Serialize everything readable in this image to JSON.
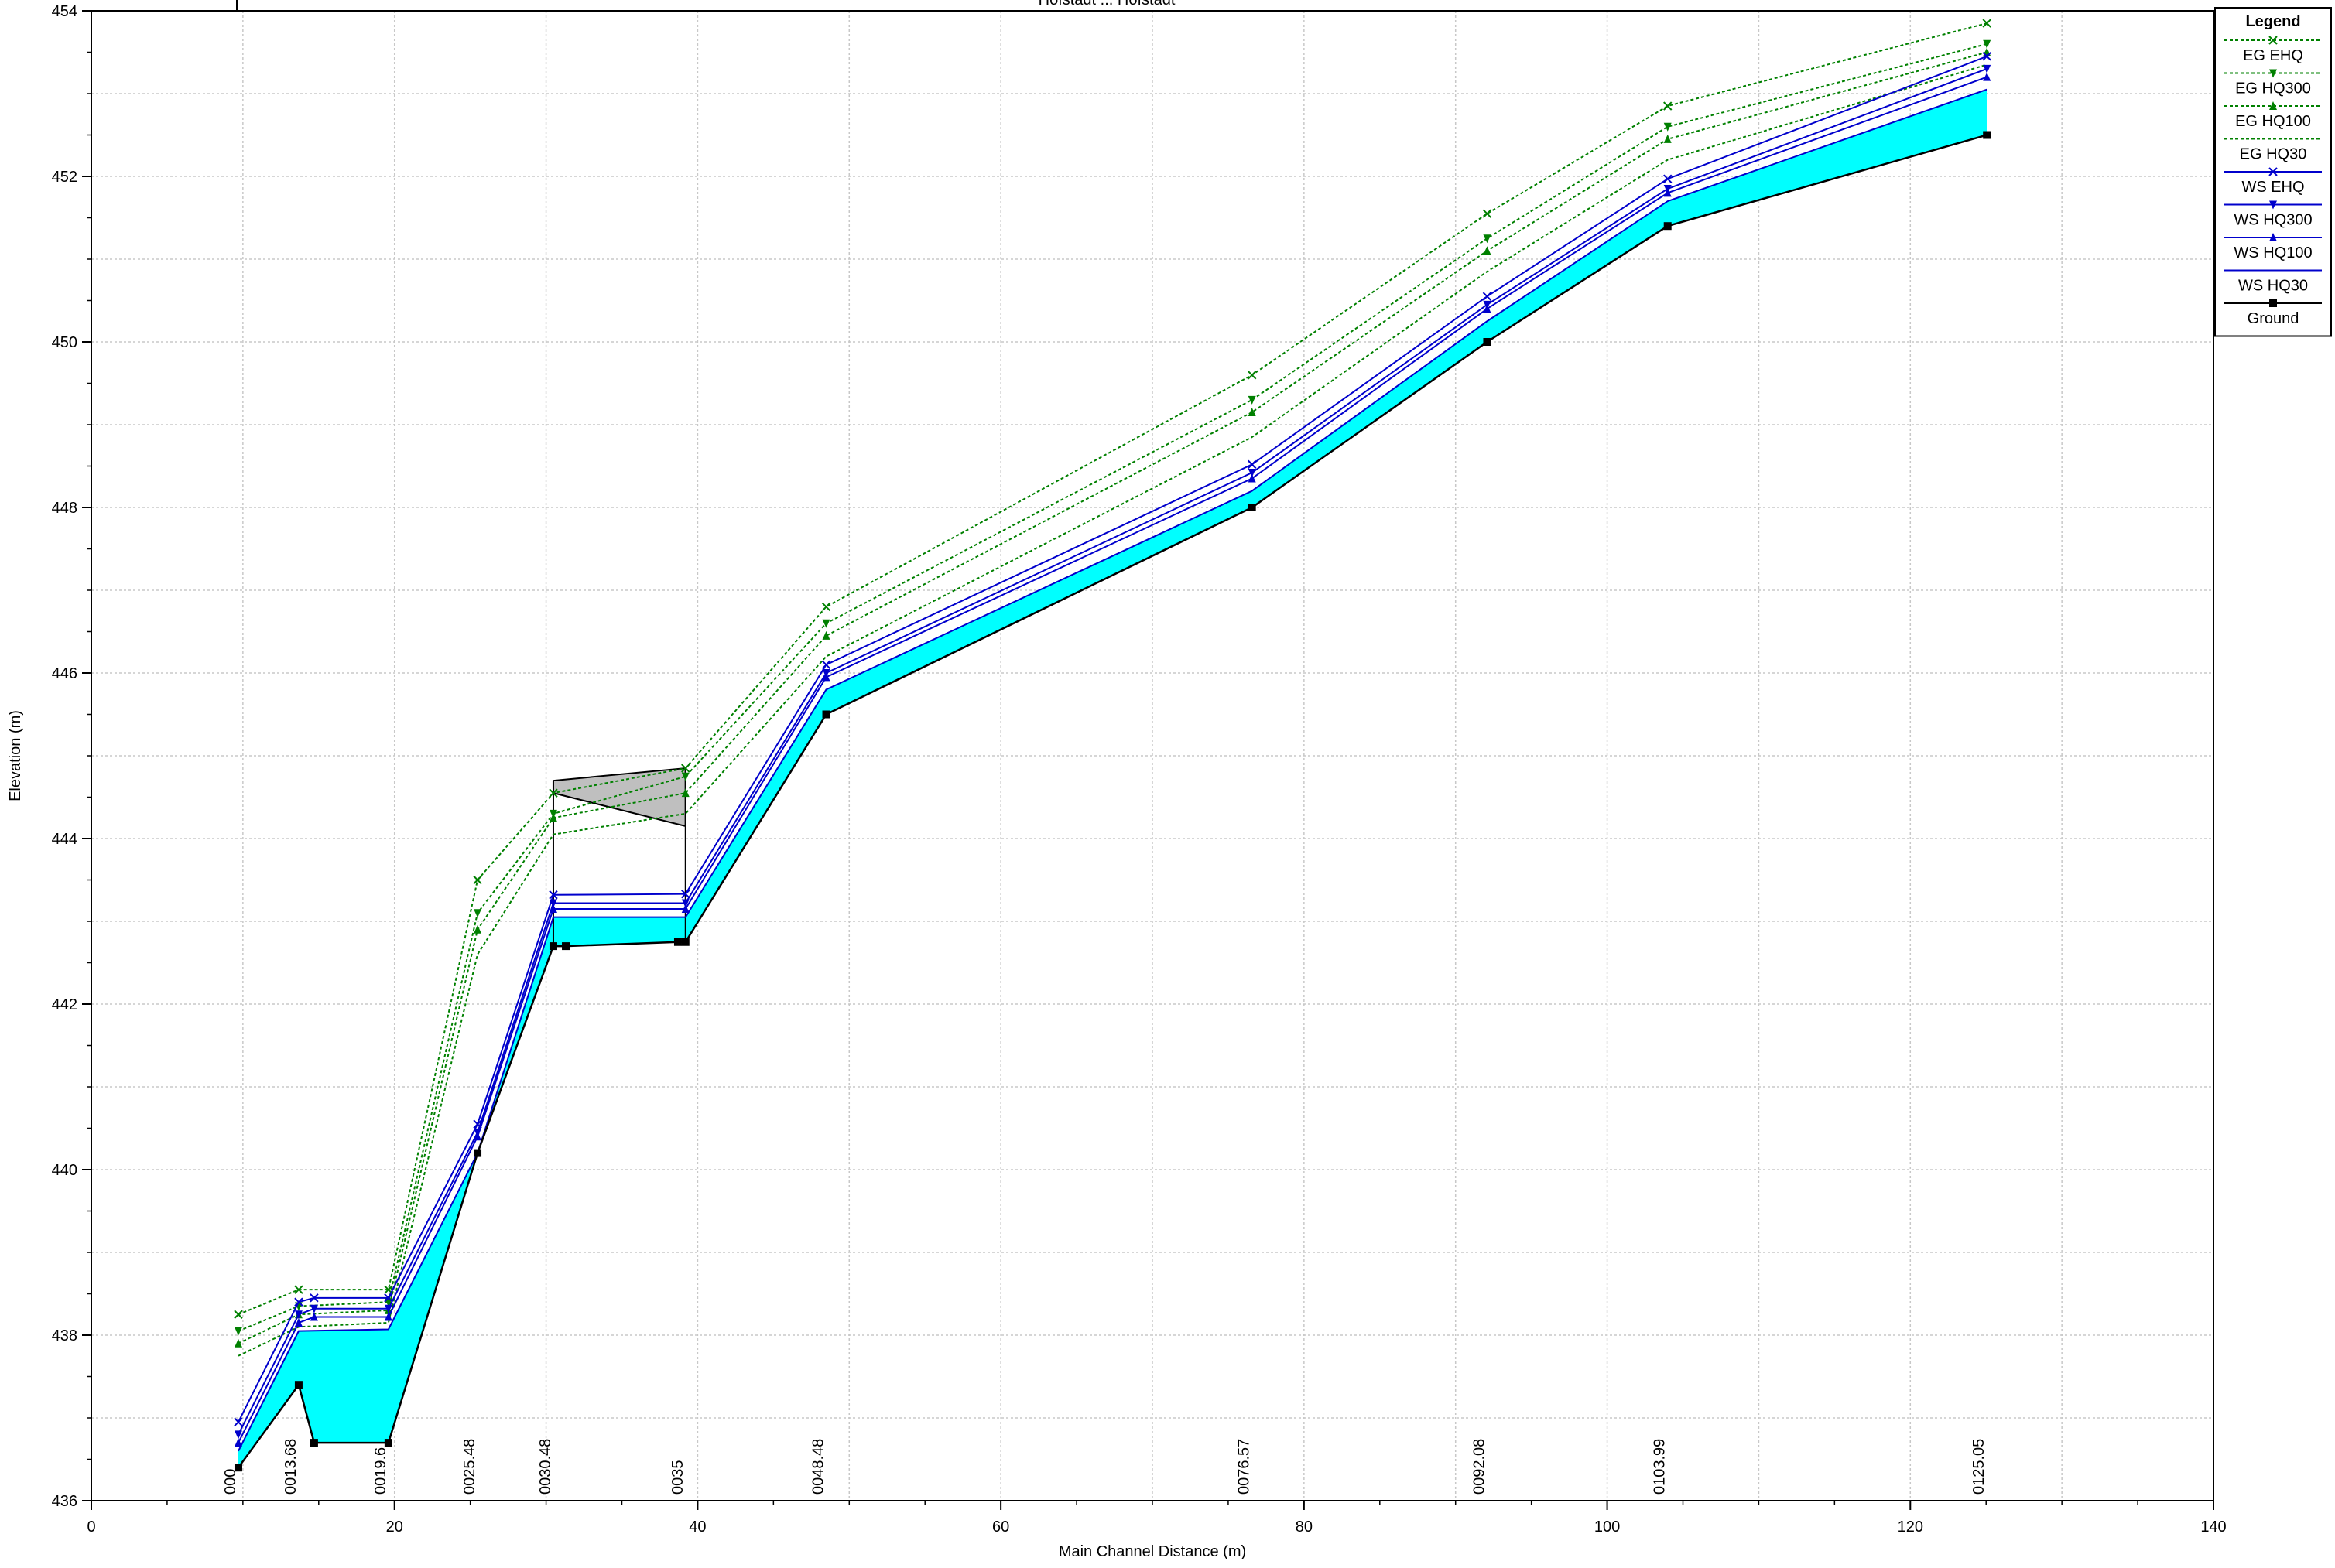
{
  "chart_data": {
    "type": "line",
    "title": "",
    "title_partial": "Hofstadt ... Hofstadt",
    "xlabel": "Main Channel Distance (m)",
    "ylabel": "Elevation (m)",
    "xlim": [
      0,
      140
    ],
    "ylim": [
      436,
      454
    ],
    "x_ticks": [
      "0",
      "20",
      "40",
      "60",
      "80",
      "100",
      "120",
      "140"
    ],
    "y_ticks": [
      "436",
      "438",
      "440",
      "442",
      "444",
      "446",
      "448",
      "450",
      "452",
      "454"
    ],
    "grid": true,
    "legend_position": "right",
    "legend_title": "Legend",
    "legend": [
      {
        "label": "EG  EHQ",
        "key": "eg_ehq"
      },
      {
        "label": "EG  HQ300",
        "key": "eg_hq300"
      },
      {
        "label": "EG  HQ100",
        "key": "eg_hq100"
      },
      {
        "label": "EG  HQ30",
        "key": "eg_hq30"
      },
      {
        "label": "WS  EHQ",
        "key": "ws_ehq"
      },
      {
        "label": "WS  HQ300",
        "key": "ws_hq300"
      },
      {
        "label": "WS  HQ100",
        "key": "ws_hq100"
      },
      {
        "label": "WS  HQ30",
        "key": "ws_hq30"
      },
      {
        "label": "Ground",
        "key": "ground"
      }
    ],
    "stations": [
      {
        "label": "000",
        "x": 9.7
      },
      {
        "label": "0013.68",
        "x": 13.68
      },
      {
        "label": "0019.6",
        "x": 19.6
      },
      {
        "label": "0025.48",
        "x": 25.48
      },
      {
        "label": "0030.48",
        "x": 30.48
      },
      {
        "label": "0035",
        "x": 39.2
      },
      {
        "label": "0048.48",
        "x": 48.48
      },
      {
        "label": "0076.57",
        "x": 76.57
      },
      {
        "label": "0092.08",
        "x": 92.08
      },
      {
        "label": "0103.99",
        "x": 103.99
      },
      {
        "label": "0125.05",
        "x": 125.05
      }
    ],
    "series": [
      {
        "key": "ground",
        "name": "Ground",
        "color": "#000000",
        "marker": "square",
        "points": [
          [
            9.7,
            436.4
          ],
          [
            13.68,
            437.4
          ],
          [
            14.7,
            436.7
          ],
          [
            19.6,
            436.7
          ],
          [
            25.48,
            440.2
          ],
          [
            30.48,
            442.7
          ],
          [
            31.3,
            442.7
          ],
          [
            38.7,
            442.75
          ],
          [
            39.2,
            442.75
          ],
          [
            48.48,
            445.5
          ],
          [
            76.57,
            448.0
          ],
          [
            92.08,
            450.0
          ],
          [
            103.99,
            451.4
          ],
          [
            125.05,
            452.5
          ]
        ]
      },
      {
        "key": "ws_hq30",
        "name": "WS  HQ30",
        "color": "#0000cc",
        "marker": "none",
        "points": [
          [
            9.7,
            436.6
          ],
          [
            13.68,
            438.05
          ],
          [
            19.6,
            438.07
          ],
          [
            25.48,
            440.2
          ],
          [
            30.48,
            443.05
          ],
          [
            39.2,
            443.05
          ],
          [
            48.48,
            445.8
          ],
          [
            76.57,
            448.2
          ],
          [
            92.08,
            450.25
          ],
          [
            103.99,
            451.7
          ],
          [
            125.05,
            453.05
          ]
        ]
      },
      {
        "key": "ws_hq100",
        "name": "WS  HQ100",
        "color": "#0000cc",
        "marker": "triangle-up",
        "points": [
          [
            9.7,
            436.7
          ],
          [
            13.68,
            438.15
          ],
          [
            14.7,
            438.22
          ],
          [
            19.6,
            438.22
          ],
          [
            25.48,
            440.4
          ],
          [
            30.48,
            443.15
          ],
          [
            39.2,
            443.15
          ],
          [
            48.48,
            445.95
          ],
          [
            76.57,
            448.35
          ],
          [
            92.08,
            450.4
          ],
          [
            103.99,
            451.8
          ],
          [
            125.05,
            453.2
          ]
        ]
      },
      {
        "key": "ws_hq300",
        "name": "WS  HQ300",
        "color": "#0000cc",
        "marker": "triangle-down",
        "points": [
          [
            9.7,
            436.8
          ],
          [
            13.68,
            438.25
          ],
          [
            14.7,
            438.32
          ],
          [
            19.6,
            438.32
          ],
          [
            25.48,
            440.45
          ],
          [
            30.48,
            443.22
          ],
          [
            39.2,
            443.22
          ],
          [
            48.48,
            446.0
          ],
          [
            76.57,
            448.42
          ],
          [
            92.08,
            450.45
          ],
          [
            103.99,
            451.85
          ],
          [
            125.05,
            453.3
          ]
        ]
      },
      {
        "key": "ws_ehq",
        "name": "WS  EHQ",
        "color": "#0000cc",
        "marker": "x",
        "points": [
          [
            9.7,
            436.95
          ],
          [
            13.68,
            438.4
          ],
          [
            14.7,
            438.45
          ],
          [
            19.6,
            438.45
          ],
          [
            25.48,
            440.55
          ],
          [
            30.48,
            443.32
          ],
          [
            39.2,
            443.33
          ],
          [
            48.48,
            446.1
          ],
          [
            76.57,
            448.52
          ],
          [
            92.08,
            450.55
          ],
          [
            103.99,
            451.97
          ],
          [
            125.05,
            453.45
          ]
        ]
      },
      {
        "key": "eg_hq30",
        "name": "EG  HQ30",
        "color": "#008000",
        "marker": "none",
        "points": [
          [
            9.7,
            437.75
          ],
          [
            13.68,
            438.1
          ],
          [
            19.6,
            438.15
          ],
          [
            25.48,
            442.6
          ],
          [
            30.48,
            444.05
          ],
          [
            39.2,
            444.3
          ],
          [
            48.48,
            446.2
          ],
          [
            76.57,
            448.85
          ],
          [
            92.08,
            450.85
          ],
          [
            103.99,
            452.2
          ],
          [
            125.05,
            453.35
          ]
        ]
      },
      {
        "key": "eg_hq100",
        "name": "EG  HQ100",
        "color": "#008000",
        "marker": "triangle-up",
        "points": [
          [
            9.7,
            437.9
          ],
          [
            13.68,
            438.25
          ],
          [
            19.6,
            438.3
          ],
          [
            25.48,
            442.9
          ],
          [
            30.48,
            444.25
          ],
          [
            39.2,
            444.55
          ],
          [
            48.48,
            446.45
          ],
          [
            76.57,
            449.15
          ],
          [
            92.08,
            451.1
          ],
          [
            103.99,
            452.45
          ],
          [
            125.05,
            453.5
          ]
        ]
      },
      {
        "key": "eg_hq300",
        "name": "EG  HQ300",
        "color": "#008000",
        "marker": "triangle-down",
        "points": [
          [
            9.7,
            438.05
          ],
          [
            13.68,
            438.35
          ],
          [
            19.6,
            438.4
          ],
          [
            25.48,
            443.1
          ],
          [
            30.48,
            444.3
          ],
          [
            39.2,
            444.75
          ],
          [
            48.48,
            446.6
          ],
          [
            76.57,
            449.3
          ],
          [
            92.08,
            451.25
          ],
          [
            103.99,
            452.6
          ],
          [
            125.05,
            453.6
          ]
        ]
      },
      {
        "key": "eg_ehq",
        "name": "EG  EHQ",
        "color": "#008000",
        "marker": "x",
        "points": [
          [
            9.7,
            438.25
          ],
          [
            13.68,
            438.55
          ],
          [
            19.6,
            438.55
          ],
          [
            25.48,
            443.5
          ],
          [
            30.48,
            444.55
          ],
          [
            39.2,
            444.85
          ],
          [
            48.48,
            446.8
          ],
          [
            76.57,
            449.6
          ],
          [
            92.08,
            451.55
          ],
          [
            103.99,
            452.85
          ],
          [
            125.05,
            453.85
          ]
        ]
      }
    ],
    "water_fill_color": "#00ffff",
    "structure": {
      "x_start": 30.48,
      "x_end": 39.2,
      "deck_bottom": [
        444.55,
        444.15
      ],
      "deck_top": [
        444.7,
        444.85
      ],
      "fill_color": "#bfbfbf"
    }
  }
}
